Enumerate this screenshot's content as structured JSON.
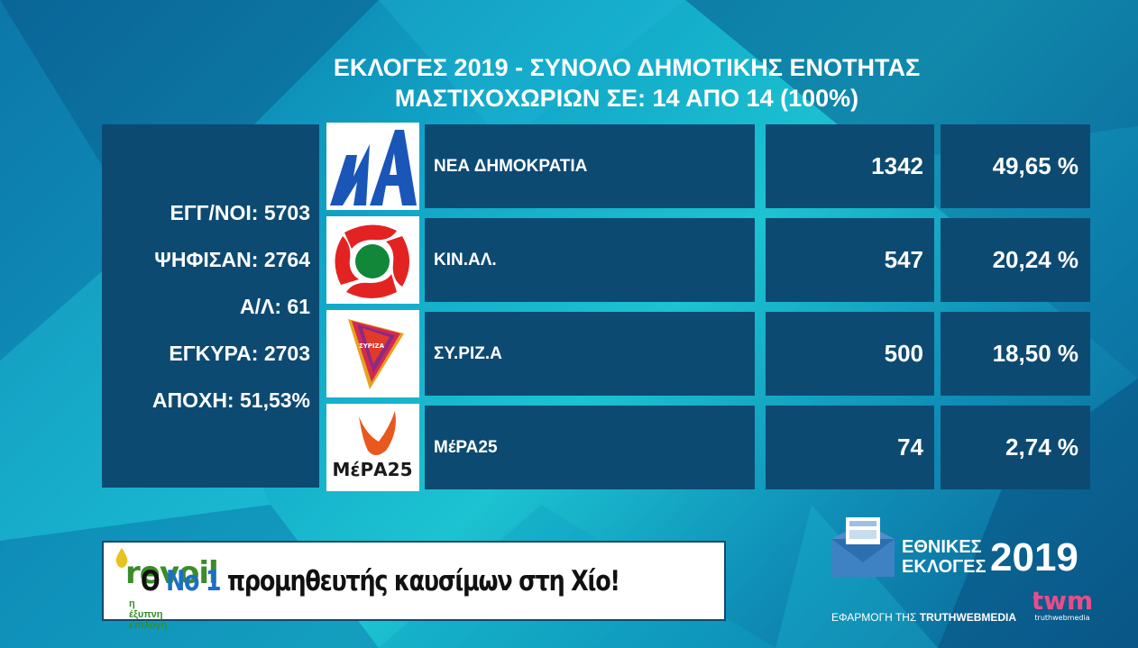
{
  "title": {
    "line1": "ΕΚΛΟΓΕΣ 2019 - ΣΥΝΟΛΟ ΔΗΜΟΤΙΚΗΣ ΕΝΟΤΗΤΑΣ",
    "line2": "ΜΑΣΤΙΧΟΧΩΡΙΩΝ ΣΕ: 14 ΑΠΟ 14 (100%)"
  },
  "stats": {
    "registered": "ΕΓΓ/ΝΟΙ: 5703",
    "voted": "ΨΗΦΙΣΑΝ: 2764",
    "blank_invalid": "Α/Λ: 61",
    "valid": "ΕΓΚΥΡΑ: 2703",
    "abstention": "ΑΠΟΧΗ: 51,53%"
  },
  "parties": [
    {
      "name": "ΝΕΑ ΔΗΜΟΚΡΑΤΙΑ",
      "votes": "1342",
      "percent": "49,65 %",
      "logo": "nd-logo"
    },
    {
      "name": "ΚΙΝ.ΑΛ.",
      "votes": "547",
      "percent": "20,24 %",
      "logo": "kinal-logo"
    },
    {
      "name": "ΣΥ.ΡΙΖ.Α",
      "votes": "500",
      "percent": "18,50 %",
      "logo": "syriza-logo"
    },
    {
      "name": "ΜέΡΑ25",
      "votes": "74",
      "percent": "2,74 %",
      "logo": "mera25-logo"
    }
  ],
  "logos": {
    "nd_text": "ΝΔ",
    "mera25_text": "ΜέΡΑ25",
    "syriza_text": "ΣΥΡΙΖΑ"
  },
  "ad": {
    "brand": "revoil",
    "slogan": "η έξυπνη επιλογή",
    "text_pre": "Ο ",
    "text_highlight": "Νο 1",
    "text_post": " προμηθευτής καυσίμων στη Χίο!"
  },
  "branding": {
    "line1": "ΕΘΝΙΚΕΣ",
    "line2": "ΕΚΛΟΓΕΣ",
    "year": "2019",
    "credit_pre": "ΕΦΑΡΜΟΓΗ ΤΗΣ ",
    "credit_bold": "TRUTHWEBMEDIA",
    "twm_text": "twm",
    "twm_sub": "truthwebmedia"
  },
  "colors": {
    "panel": "#0d4a72",
    "nd_blue": "#1a56b8",
    "kinal_red": "#e32322",
    "kinal_green": "#11873a",
    "mera_orange": "#e8581f",
    "revoil_green": "#3a8d2a"
  }
}
